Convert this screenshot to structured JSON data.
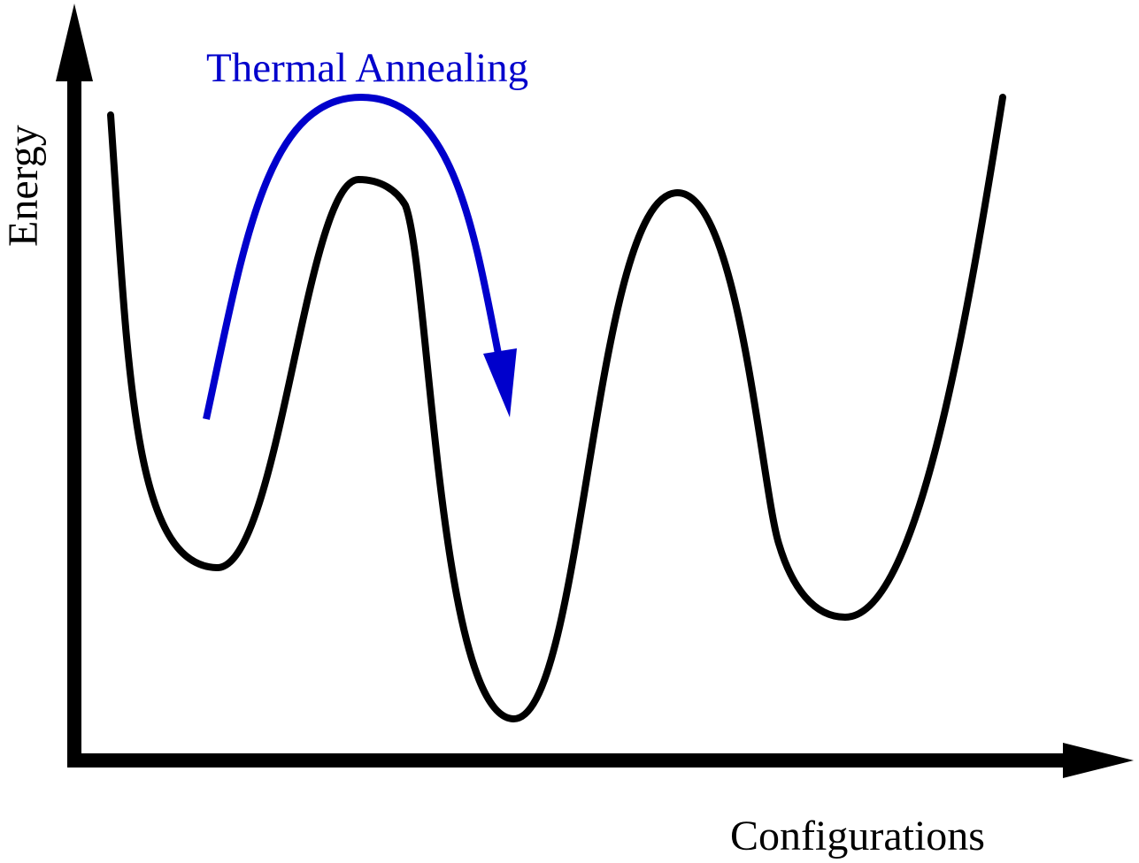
{
  "annotation": {
    "text": "Thermal Annealing",
    "color": "#0000cc"
  },
  "axes": {
    "x_label": "Configurations",
    "y_label": "Energy",
    "color": "#000000"
  },
  "curve": {
    "color": "#000000"
  }
}
